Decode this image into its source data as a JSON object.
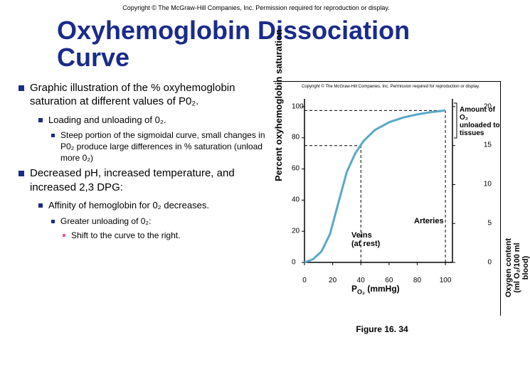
{
  "copyright_main": "Copyright © The McGraw-Hill Companies, Inc. Permission required for reproduction or display.",
  "title_line1": "Oxyhemoglobin Dissociation",
  "title_line2": "Curve",
  "bullets": {
    "b1": "Graphic illustration of the % oxyhemoglobin saturation at different values of P0₂.",
    "b1a": "Loading and unloading of 0₂.",
    "b1a1": "Steep portion of the sigmoidal curve, small changes in P0₂ produce large differences in % saturation (unload more 0₂)",
    "b2": "Decreased pH, increased temperature, and increased 2,3 DPG:",
    "b2a": "Affinity of hemoglobin for 0₂ decreases.",
    "b2a1": "Greater unloading of 0₂:",
    "b2a1a": "Shift to the curve to the right."
  },
  "chart": {
    "type": "line",
    "copyright": "Copyright © The McGraw-Hill Companies, Inc. Permission required for reproduction or display.",
    "y_label": "Percent oxyhemoglobin saturation",
    "x_label": "P O₂ (mmHg)",
    "y2_label": "Oxygen content (ml O₂/100 ml blood)",
    "x_ticks": [
      0,
      20,
      40,
      60,
      80,
      100
    ],
    "y_ticks": [
      0,
      20,
      40,
      60,
      80,
      100
    ],
    "y2_ticks": [
      0,
      5,
      10,
      15,
      20
    ],
    "xlim": [
      0,
      105
    ],
    "ylim": [
      0,
      105
    ],
    "curve_points": [
      [
        0,
        0
      ],
      [
        6,
        2
      ],
      [
        12,
        7
      ],
      [
        18,
        18
      ],
      [
        24,
        38
      ],
      [
        30,
        58
      ],
      [
        36,
        70
      ],
      [
        42,
        78
      ],
      [
        50,
        85
      ],
      [
        60,
        90
      ],
      [
        70,
        93
      ],
      [
        80,
        95
      ],
      [
        90,
        96.5
      ],
      [
        100,
        97.5
      ]
    ],
    "curve_color": "#5aa8c8",
    "curve_width": 3,
    "dashed_lines": [
      {
        "from": [
          40,
          0
        ],
        "to": [
          40,
          75
        ],
        "color": "#000"
      },
      {
        "from": [
          0,
          75
        ],
        "to": [
          40,
          75
        ],
        "color": "#000"
      },
      {
        "from": [
          100,
          0
        ],
        "to": [
          100,
          97.5
        ],
        "color": "#000"
      },
      {
        "from": [
          0,
          97.5
        ],
        "to": [
          100,
          97.5
        ],
        "color": "#000"
      }
    ],
    "annotations": {
      "veins": "Veins (at rest)",
      "arteries": "Arteries",
      "unload": "Amount of O₂ unloaded to tissues"
    },
    "background_color": "#ffffff",
    "axis_color": "#000000"
  },
  "figure_label": "Figure 16. 34"
}
